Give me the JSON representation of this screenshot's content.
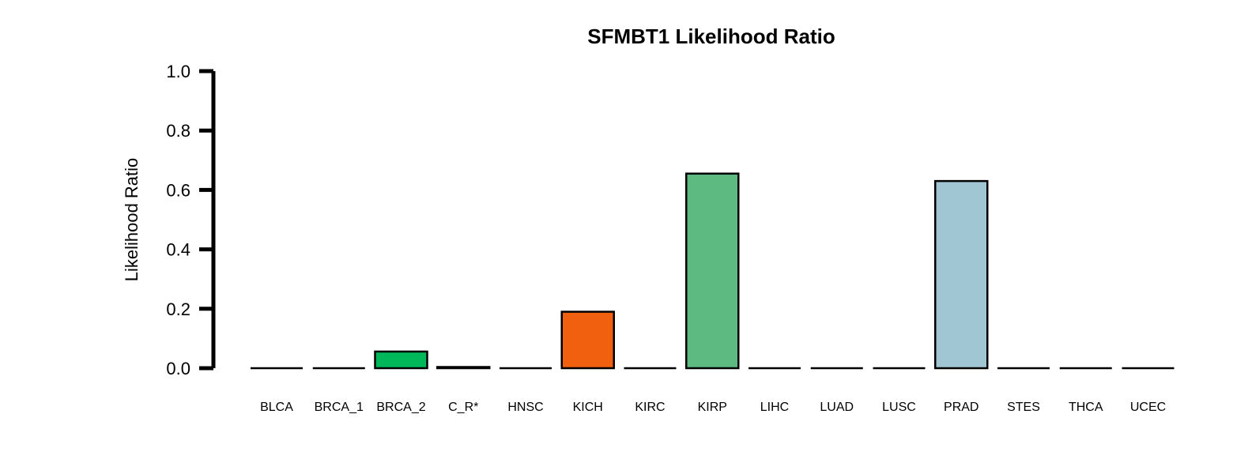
{
  "chart_data": {
    "type": "bar",
    "title": "SFMBT1 Likelihood Ratio",
    "xlabel": "",
    "ylabel": "Likelihood Ratio",
    "ylim": [
      0,
      1
    ],
    "yticks": [
      "0.0",
      "0.2",
      "0.4",
      "0.6",
      "0.8",
      "1.0"
    ],
    "categories": [
      "BLCA",
      "BRCA_1",
      "BRCA_2",
      "C_R*",
      "HNSC",
      "KICH",
      "KIRC",
      "KIRP",
      "LIHC",
      "LUAD",
      "LUSC",
      "PRAD",
      "STES",
      "THCA",
      "UCEC"
    ],
    "values": [
      0.0,
      0.0,
      0.056,
      0.004,
      0.0,
      0.19,
      0.0,
      0.655,
      0.0,
      0.0,
      0.0,
      0.63,
      0.0,
      0.0,
      0.0
    ],
    "colors": [
      "#ffffff",
      "#ffffff",
      "#00b85a",
      "#ffffff",
      "#ffffff",
      "#f0600f",
      "#ffffff",
      "#5dba80",
      "#ffffff",
      "#ffffff",
      "#ffffff",
      "#a0c6d4",
      "#ffffff",
      "#ffffff",
      "#ffffff"
    ],
    "grid": false,
    "legend": "none"
  }
}
